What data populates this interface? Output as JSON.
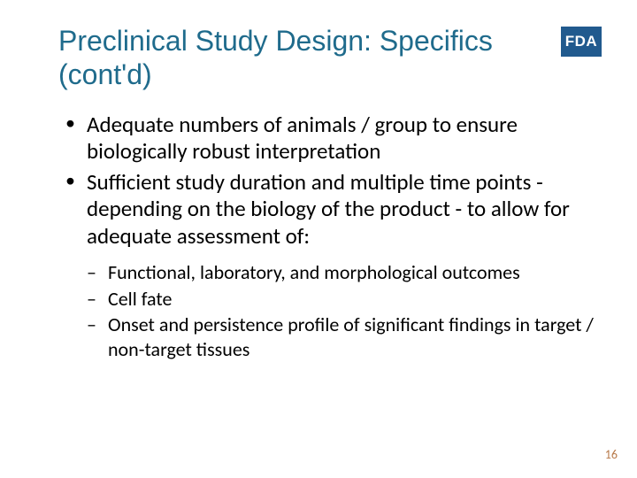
{
  "title": "Preclinical Study Design: Specifics (cont'd)",
  "logo_text": "FDA",
  "logo_bg": "#215a8e",
  "logo_fg": "#ffffff",
  "title_color": "#1f6b8c",
  "body_color": "#000000",
  "page_number_color": "#b87a4a",
  "bullets": [
    "Adequate numbers of animals / group to ensure biologically robust interpretation",
    "Sufficient study duration and multiple time points - depending on the biology of the product - to allow for adequate assessment of:"
  ],
  "sub_bullets": [
    "Functional, laboratory, and morphological  outcomes",
    "Cell fate",
    "Onset and persistence profile of significant findings in target / non-target tissues"
  ],
  "page_number": "16"
}
